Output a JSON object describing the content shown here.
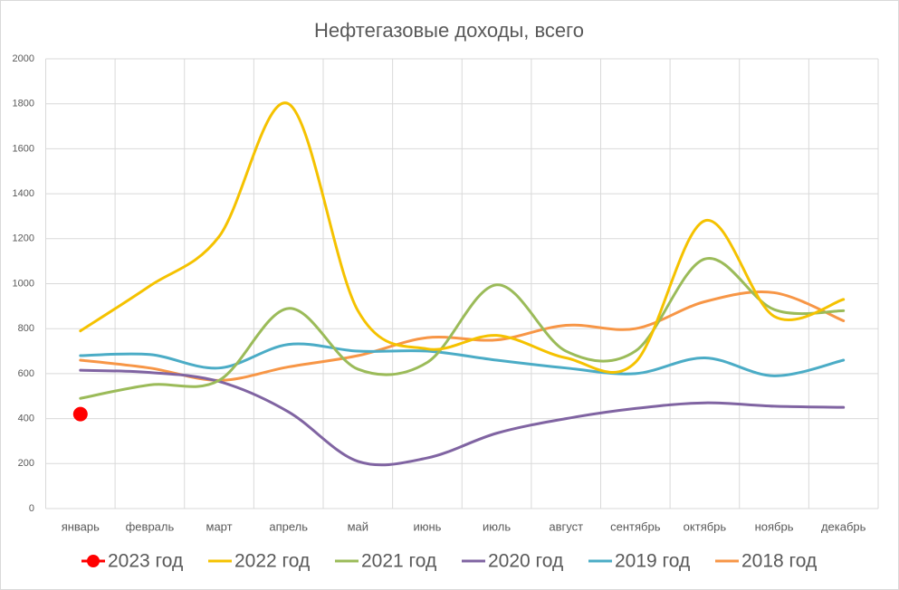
{
  "chart_data": {
    "type": "line",
    "title": "Нефтегазовые доходы, всего",
    "categories": [
      "январь",
      "февраль",
      "март",
      "апрель",
      "май",
      "июнь",
      "июль",
      "август",
      "сентябрь",
      "октябрь",
      "ноябрь",
      "декабрь"
    ],
    "series": [
      {
        "name": "2023 год",
        "color": "#ff0000",
        "marker": true,
        "values": [
          420,
          null,
          null,
          null,
          null,
          null,
          null,
          null,
          null,
          null,
          null,
          null
        ]
      },
      {
        "name": "2022 год",
        "color": "#f5c200",
        "values": [
          790,
          990,
          1210,
          1800,
          880,
          710,
          770,
          670,
          650,
          1280,
          855,
          930
        ]
      },
      {
        "name": "2021 год",
        "color": "#9bbb59",
        "values": [
          490,
          550,
          570,
          890,
          620,
          650,
          995,
          700,
          700,
          1110,
          885,
          880
        ]
      },
      {
        "name": "2020 год",
        "color": "#8064a2",
        "values": [
          615,
          605,
          565,
          430,
          210,
          225,
          335,
          400,
          445,
          470,
          455,
          450
        ]
      },
      {
        "name": "2019 год",
        "color": "#4bacc6",
        "values": [
          680,
          685,
          625,
          730,
          700,
          700,
          660,
          625,
          600,
          670,
          590,
          660
        ]
      },
      {
        "name": "2018 год",
        "color": "#f79646",
        "values": [
          660,
          625,
          570,
          630,
          680,
          760,
          750,
          815,
          800,
          920,
          960,
          835
        ]
      }
    ],
    "ylim": [
      0,
      2000
    ],
    "yticks": [
      0,
      200,
      400,
      600,
      800,
      1000,
      1200,
      1400,
      1600,
      1800,
      2000
    ],
    "grid": true,
    "smooth": true,
    "legend": "bottom"
  }
}
